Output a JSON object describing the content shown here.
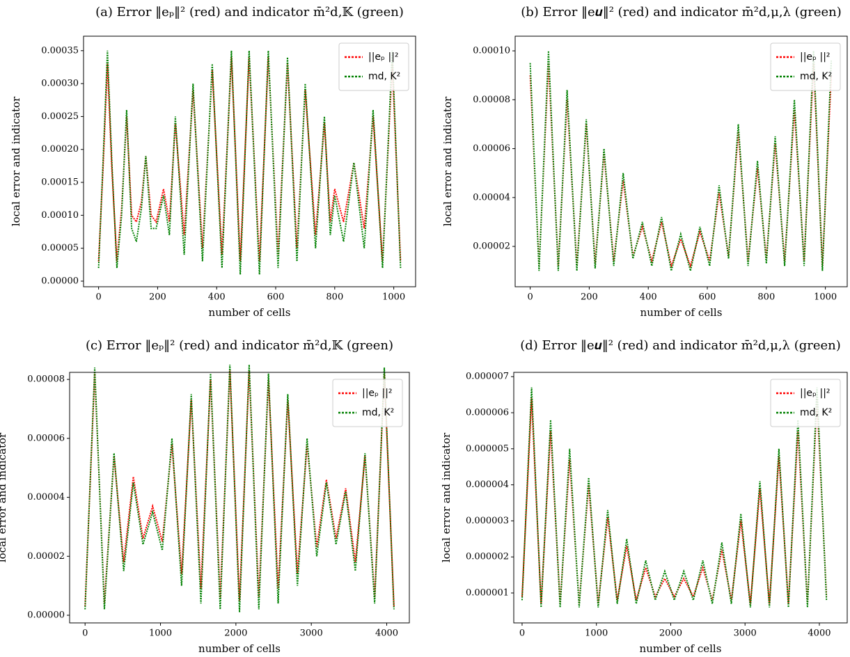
{
  "chart_data": [
    {
      "type": "line",
      "title": "(a) Error ‖eₚ‖² (red) and indicator m̄²d,𝕂 (green)",
      "xlabel": "number of cells",
      "ylabel": "local error and indicator",
      "x": [
        0,
        15,
        30,
        45,
        62,
        78,
        95,
        112,
        128,
        145,
        160,
        178,
        195,
        220,
        240,
        260,
        290,
        320,
        352,
        385,
        418,
        450,
        480,
        510,
        545,
        575,
        608,
        640,
        672,
        700,
        735,
        765,
        785,
        800,
        830,
        865,
        900,
        930,
        962,
        995,
        1023
      ],
      "series": [
        {
          "name": "||eₚ ||²",
          "color": "#ff0000",
          "values": [
            3e-05,
            0.00017,
            0.00033,
            0.00017,
            3e-05,
            0.00011,
            0.00025,
            0.0001,
            9e-05,
            0.00012,
            0.00019,
            0.0001,
            9e-05,
            0.00014,
            9e-05,
            0.00024,
            7e-05,
            0.00029,
            5e-05,
            0.00032,
            4e-05,
            0.00034,
            3e-05,
            0.00034,
            3e-05,
            0.00034,
            4e-05,
            0.00033,
            5e-05,
            0.00029,
            7e-05,
            0.00024,
            9e-05,
            0.00014,
            9e-05,
            0.00018,
            8e-05,
            0.00025,
            3e-05,
            0.00033,
            3e-05
          ]
        },
        {
          "name": "md, K²",
          "color": "#008000",
          "values": [
            2e-05,
            0.00018,
            0.00035,
            0.00018,
            2e-05,
            0.0001,
            0.00026,
            8e-05,
            6e-05,
            0.00011,
            0.00019,
            8e-05,
            8e-05,
            0.00013,
            7e-05,
            0.00025,
            4e-05,
            0.0003,
            3e-05,
            0.00033,
            2e-05,
            0.00035,
            1e-05,
            0.00035,
            1e-05,
            0.00035,
            2e-05,
            0.00034,
            3e-05,
            0.0003,
            5e-05,
            0.00025,
            7e-05,
            0.00013,
            6e-05,
            0.00018,
            5e-05,
            0.00026,
            2e-05,
            0.00035,
            2e-05
          ]
        }
      ],
      "xlim": [
        -51,
        1074
      ],
      "xticks": [
        0,
        200,
        400,
        600,
        800,
        1000
      ],
      "ylim": [
        -8.5e-06,
        0.000372
      ],
      "yticks": [
        {
          "value": 0,
          "label": "0.00000"
        },
        {
          "value": 5e-05,
          "label": "0.00005"
        },
        {
          "value": 0.0001,
          "label": "0.00010"
        },
        {
          "value": 0.00015,
          "label": "0.00015"
        },
        {
          "value": 0.0002,
          "label": "0.00020"
        },
        {
          "value": 0.00025,
          "label": "0.00025"
        },
        {
          "value": 0.0003,
          "label": "0.00030"
        },
        {
          "value": 0.00035,
          "label": "0.00035"
        }
      ],
      "legend": "upper right",
      "grid": false
    },
    {
      "type": "line",
      "title": "(b) Error ‖e𝒖‖² (red) and indicator m̄²d,μ,λ (green)",
      "xlabel": "number of cells",
      "ylabel": "local error and indicator",
      "x": [
        0,
        30,
        62,
        95,
        125,
        158,
        190,
        220,
        250,
        283,
        315,
        348,
        380,
        412,
        445,
        478,
        510,
        543,
        575,
        608,
        640,
        672,
        705,
        738,
        770,
        800,
        830,
        862,
        895,
        928,
        960,
        990,
        1020
      ],
      "series": [
        {
          "name": "||eₚ ||²",
          "color": "#ff0000",
          "values": [
            9e-05,
            1.2e-05,
            9.5e-05,
            1.2e-05,
            8e-05,
            1.2e-05,
            7e-05,
            1.3e-05,
            5.8e-05,
            1.4e-05,
            4.7e-05,
            1.6e-05,
            2.8e-05,
            1.4e-05,
            3e-05,
            1.2e-05,
            2.3e-05,
            1.2e-05,
            2.6e-05,
            1.4e-05,
            4.2e-05,
            1.6e-05,
            6.7e-05,
            1.4e-05,
            5.2e-05,
            1.5e-05,
            6.2e-05,
            1.4e-05,
            7.6e-05,
            1.4e-05,
            9.5e-05,
            1.2e-05,
            9e-05
          ]
        },
        {
          "name": "md, K²",
          "color": "#008000",
          "values": [
            9.5e-05,
            1e-05,
            0.0001,
            1e-05,
            8.4e-05,
            1e-05,
            7.2e-05,
            1.1e-05,
            6e-05,
            1.2e-05,
            5e-05,
            1.5e-05,
            3e-05,
            1.2e-05,
            3.2e-05,
            1e-05,
            2.5e-05,
            1e-05,
            2.8e-05,
            1.2e-05,
            4.5e-05,
            1.5e-05,
            7e-05,
            1.2e-05,
            5.5e-05,
            1.3e-05,
            6.5e-05,
            1.2e-05,
            8e-05,
            1.2e-05,
            0.0001,
            1e-05,
            9.6e-05
          ]
        }
      ],
      "xlim": [
        -51,
        1074
      ],
      "xticks": [
        0,
        200,
        400,
        600,
        800,
        1000
      ],
      "ylim": [
        3.5e-06,
        0.000106
      ],
      "yticks": [
        {
          "value": 2e-05,
          "label": "0.00002"
        },
        {
          "value": 4e-05,
          "label": "0.00004"
        },
        {
          "value": 6e-05,
          "label": "0.00006"
        },
        {
          "value": 8e-05,
          "label": "0.00008"
        },
        {
          "value": 0.0001,
          "label": "0.00010"
        }
      ],
      "legend": "upper right",
      "grid": false
    },
    {
      "type": "line",
      "title": "(c) Error ‖eₚ‖² (red) and indicator m̄²d,𝕂 (green)",
      "xlabel": "number of cells",
      "ylabel": "local error and indicator",
      "x": [
        0,
        128,
        256,
        384,
        512,
        640,
        768,
        896,
        1024,
        1152,
        1280,
        1408,
        1536,
        1664,
        1792,
        1920,
        2048,
        2176,
        2304,
        2432,
        2560,
        2688,
        2816,
        2944,
        3072,
        3200,
        3328,
        3456,
        3584,
        3712,
        3840,
        3968,
        4096
      ],
      "series": [
        {
          "name": "||eₚ ||²",
          "color": "#ff0000",
          "values": [
            3e-06,
            8.2e-05,
            4e-06,
            5.4e-05,
            1.8e-05,
            4.7e-05,
            2.6e-05,
            3.7e-05,
            2.5e-05,
            5.8e-05,
            1.4e-05,
            7.3e-05,
            9e-06,
            8e-05,
            6e-06,
            8.3e-05,
            5e-06,
            8.3e-05,
            6e-06,
            8e-05,
            9e-06,
            7.3e-05,
            1.4e-05,
            5.8e-05,
            2.3e-05,
            4.6e-05,
            2.6e-05,
            4.3e-05,
            1.8e-05,
            5.4e-05,
            6e-06,
            8.2e-05,
            3e-06
          ]
        },
        {
          "name": "md, K²",
          "color": "#008000",
          "values": [
            2e-06,
            8.4e-05,
            2e-06,
            5.5e-05,
            1.5e-05,
            4.5e-05,
            2.4e-05,
            3.5e-05,
            2.2e-05,
            6e-05,
            1e-05,
            7.5e-05,
            4e-06,
            8.2e-05,
            2e-06,
            8.5e-05,
            1e-06,
            8.5e-05,
            2e-06,
            8.2e-05,
            4e-06,
            7.5e-05,
            1e-05,
            6e-05,
            2e-05,
            4.5e-05,
            2.4e-05,
            4.2e-05,
            1.5e-05,
            5.5e-05,
            4e-06,
            8.4e-05,
            2e-06
          ]
        }
      ],
      "xlim": [
        -205,
        4300
      ],
      "xticks": [
        0,
        1000,
        2000,
        3000,
        4000
      ],
      "ylim": [
        -2.6e-06,
        8.24e-05
      ],
      "yticks": [
        {
          "value": 0,
          "label": "0.00000"
        },
        {
          "value": 2e-05,
          "label": "0.00002"
        },
        {
          "value": 4e-05,
          "label": "0.00004"
        },
        {
          "value": 6e-05,
          "label": "0.00006"
        },
        {
          "value": 8e-05,
          "label": "0.00008"
        }
      ],
      "legend": "upper right",
      "grid": false
    },
    {
      "type": "line",
      "title": "(d) Error ‖e𝒖‖² (red) and indicator m̄²d,μ,λ (green)",
      "xlabel": "number of cells",
      "ylabel": "local error and indicator",
      "x": [
        0,
        128,
        256,
        384,
        512,
        640,
        768,
        896,
        1024,
        1152,
        1280,
        1408,
        1536,
        1664,
        1792,
        1920,
        2048,
        2176,
        2304,
        2432,
        2560,
        2688,
        2816,
        2944,
        3072,
        3200,
        3328,
        3456,
        3584,
        3712,
        3840,
        3968,
        4096
      ],
      "series": [
        {
          "name": "||eₚ ||²",
          "color": "#ff0000",
          "values": [
            9e-07,
            6.4e-06,
            7e-07,
            5.5e-06,
            7e-07,
            4.7e-06,
            7e-07,
            4e-06,
            7e-07,
            3.1e-06,
            8e-07,
            2.3e-06,
            8e-07,
            1.7e-06,
            9e-07,
            1.4e-06,
            9e-07,
            1.4e-06,
            9e-07,
            1.7e-06,
            8e-07,
            2.2e-06,
            8e-07,
            3e-06,
            7e-07,
            3.9e-06,
            7e-07,
            4.8e-06,
            7e-07,
            5.5e-06,
            7e-07,
            6.4e-06,
            9e-07
          ]
        },
        {
          "name": "md, K²",
          "color": "#008000",
          "values": [
            8e-07,
            6.7e-06,
            6e-07,
            5.8e-06,
            6e-07,
            5e-06,
            6e-07,
            4.2e-06,
            6e-07,
            3.3e-06,
            7e-07,
            2.5e-06,
            7e-07,
            1.9e-06,
            8e-07,
            1.6e-06,
            8e-07,
            1.6e-06,
            8e-07,
            1.9e-06,
            7e-07,
            2.4e-06,
            7e-07,
            3.2e-06,
            6e-07,
            4.1e-06,
            6e-07,
            5e-06,
            6e-07,
            5.8e-06,
            6e-07,
            6.7e-06,
            8e-07
          ]
        }
      ],
      "xlim": [
        -112,
        4375
      ],
      "xticks": [
        0,
        1000,
        2000,
        3000,
        4000
      ],
      "ylim": [
        1.7e-07,
        7.12e-06
      ],
      "yticks": [
        {
          "value": 1e-06,
          "label": "0.000001"
        },
        {
          "value": 2e-06,
          "label": "0.000002"
        },
        {
          "value": 3e-06,
          "label": "0.000003"
        },
        {
          "value": 4e-06,
          "label": "0.000004"
        },
        {
          "value": 5e-06,
          "label": "0.000005"
        },
        {
          "value": 6e-06,
          "label": "0.000006"
        },
        {
          "value": 7e-06,
          "label": "0.000007"
        }
      ],
      "legend": "upper right",
      "grid": false
    }
  ]
}
